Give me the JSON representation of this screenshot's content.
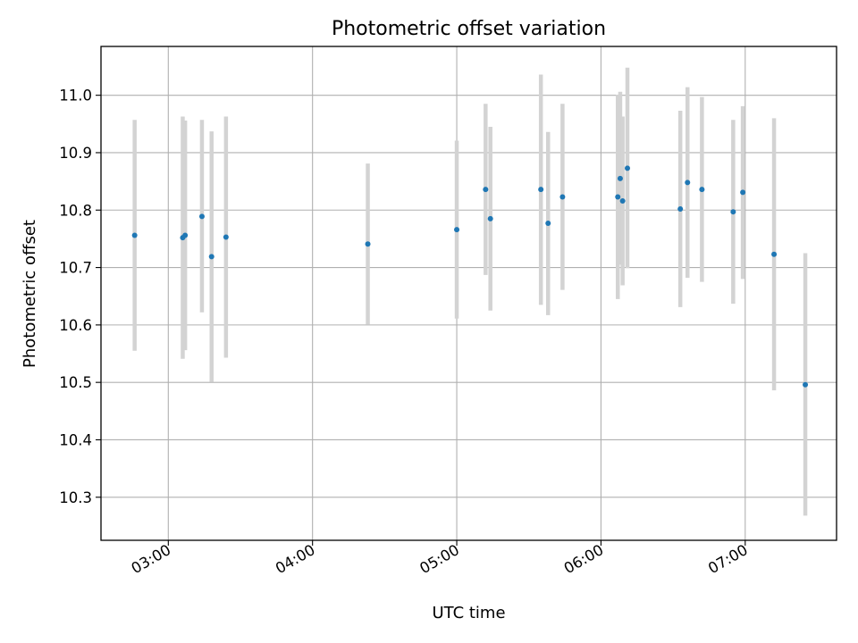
{
  "chart_data": {
    "type": "scatter",
    "title": "Photometric offset variation",
    "xlabel": "UTC time",
    "ylabel": "Photometric offset",
    "x_tick_labels": [
      "03:00",
      "04:00",
      "05:00",
      "06:00",
      "07:00"
    ],
    "x_ticks": [
      "03:00",
      "04:00",
      "05:00",
      "06:00",
      "07:00"
    ],
    "x_range": [
      "02:32",
      "07:38"
    ],
    "y_ticks": [
      10.3,
      10.4,
      10.5,
      10.6,
      10.7,
      10.8,
      10.9,
      11.0
    ],
    "y_tick_labels": [
      "10.3",
      "10.4",
      "10.5",
      "10.6",
      "10.7",
      "10.8",
      "10.9",
      "11.0"
    ],
    "ylim": [
      10.225,
      11.085
    ],
    "grid": true,
    "colors": {
      "point": "#1f77b4",
      "errorbar": "#d3d3d3",
      "grid": "#b0b0b0"
    },
    "points": [
      {
        "time": "02:46",
        "value": 10.756,
        "low": 10.555,
        "high": 10.957
      },
      {
        "time": "03:06",
        "value": 10.752,
        "low": 10.541,
        "high": 10.963
      },
      {
        "time": "03:07",
        "value": 10.756,
        "low": 10.556,
        "high": 10.956
      },
      {
        "time": "03:14",
        "value": 10.789,
        "low": 10.622,
        "high": 10.957
      },
      {
        "time": "03:18",
        "value": 10.719,
        "low": 10.501,
        "high": 10.937
      },
      {
        "time": "03:24",
        "value": 10.753,
        "low": 10.543,
        "high": 10.963
      },
      {
        "time": "04:23",
        "value": 10.741,
        "low": 10.601,
        "high": 10.881
      },
      {
        "time": "05:00",
        "value": 10.766,
        "low": 10.611,
        "high": 10.921
      },
      {
        "time": "05:12",
        "value": 10.836,
        "low": 10.687,
        "high": 10.985
      },
      {
        "time": "05:14",
        "value": 10.785,
        "low": 10.625,
        "high": 10.945
      },
      {
        "time": "05:35",
        "value": 10.836,
        "low": 10.635,
        "high": 11.036
      },
      {
        "time": "05:38",
        "value": 10.777,
        "low": 10.617,
        "high": 10.936
      },
      {
        "time": "05:44",
        "value": 10.823,
        "low": 10.661,
        "high": 10.985
      },
      {
        "time": "06:07",
        "value": 10.823,
        "low": 10.645,
        "high": 11.001
      },
      {
        "time": "06:08",
        "value": 10.855,
        "low": 10.705,
        "high": 11.006
      },
      {
        "time": "06:09",
        "value": 10.816,
        "low": 10.669,
        "high": 10.963
      },
      {
        "time": "06:11",
        "value": 10.873,
        "low": 10.699,
        "high": 11.048
      },
      {
        "time": "06:33",
        "value": 10.802,
        "low": 10.631,
        "high": 10.973
      },
      {
        "time": "06:36",
        "value": 10.848,
        "low": 10.682,
        "high": 11.014
      },
      {
        "time": "06:42",
        "value": 10.836,
        "low": 10.675,
        "high": 10.997
      },
      {
        "time": "06:55",
        "value": 10.797,
        "low": 10.637,
        "high": 10.957
      },
      {
        "time": "06:59",
        "value": 10.831,
        "low": 10.68,
        "high": 10.981
      },
      {
        "time": "07:12",
        "value": 10.723,
        "low": 10.486,
        "high": 10.96
      },
      {
        "time": "07:25",
        "value": 10.496,
        "low": 10.268,
        "high": 10.725
      }
    ]
  }
}
